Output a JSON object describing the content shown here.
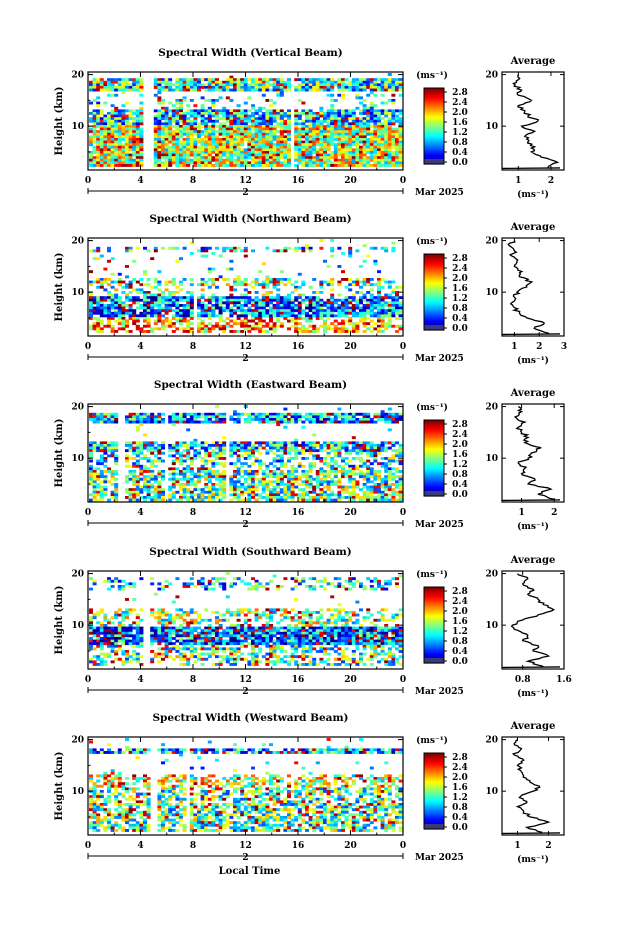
{
  "chart_data": [
    {
      "type": "heatmap",
      "title": "Spectral Width (Vertical Beam)",
      "ylabel": "Height (km)",
      "x_ticks": [
        "0",
        "4",
        "8",
        "12",
        "16",
        "20",
        "0"
      ],
      "y_ticks": [
        "20",
        "10"
      ],
      "date_label": "Mar 2025",
      "day_label": "2",
      "colorbar": {
        "unit": "(ms⁻¹)",
        "ticks": [
          "2.8",
          "2.4",
          "2.0",
          "1.6",
          "1.2",
          "0.8",
          "0.4",
          "0.0"
        ],
        "range": [
          0,
          3.0
        ]
      },
      "profile": {
        "title": "Average",
        "xlabel": "(ms⁻¹)",
        "x_ticks": [
          "1",
          "2"
        ],
        "xlim": [
          0.5,
          2.4
        ],
        "y_ticks": [
          "20",
          "10"
        ],
        "heights": [
          2,
          3,
          4,
          5,
          6,
          7,
          8,
          9,
          10,
          11,
          12,
          13,
          14,
          15,
          16,
          17,
          18,
          19,
          20
        ],
        "values": [
          1.9,
          2.2,
          1.7,
          1.4,
          1.5,
          1.3,
          1.2,
          1.5,
          1.1,
          1.6,
          1.3,
          1.2,
          1.0,
          1.4,
          1.0,
          1.1,
          0.9,
          1.0,
          1.0
        ]
      }
    },
    {
      "type": "heatmap",
      "title": "Spectral Width (Northward Beam)",
      "ylabel": "Height (km)",
      "x_ticks": [
        "0",
        "4",
        "8",
        "12",
        "16",
        "20",
        "0"
      ],
      "y_ticks": [
        "20",
        "10"
      ],
      "date_label": "Mar 2025",
      "day_label": "2",
      "colorbar": {
        "unit": "(ms⁻¹)",
        "ticks": [
          "2.8",
          "2.4",
          "2.0",
          "1.6",
          "1.2",
          "0.8",
          "0.4",
          "0.0"
        ],
        "range": [
          0,
          3.0
        ]
      },
      "profile": {
        "title": "Average",
        "xlabel": "(ms⁻¹)",
        "x_ticks": [
          "1",
          "2",
          "3"
        ],
        "xlim": [
          0.5,
          3.0
        ],
        "y_ticks": [
          "20",
          "10"
        ],
        "heights": [
          2,
          3,
          4,
          5,
          6,
          7,
          8,
          9,
          10,
          11,
          12,
          13,
          14,
          15,
          16,
          17,
          18,
          19,
          20
        ],
        "values": [
          2.4,
          1.8,
          2.2,
          1.5,
          1.2,
          1.0,
          0.9,
          1.0,
          1.1,
          1.5,
          1.7,
          1.2,
          1.3,
          1.0,
          1.1,
          0.9,
          1.0,
          0.8,
          1.0
        ]
      }
    },
    {
      "type": "heatmap",
      "title": "Spectral Width (Eastward Beam)",
      "ylabel": "Height (km)",
      "x_ticks": [
        "0",
        "4",
        "8",
        "12",
        "16",
        "20",
        "0"
      ],
      "y_ticks": [
        "20",
        "10"
      ],
      "date_label": "Mar 2025",
      "day_label": "2",
      "colorbar": {
        "unit": "(ms⁻¹)",
        "ticks": [
          "2.8",
          "2.4",
          "2.0",
          "1.6",
          "1.2",
          "0.8",
          "0.4",
          "0.0"
        ],
        "range": [
          0,
          3.0
        ]
      },
      "profile": {
        "title": "Average",
        "xlabel": "(ms⁻¹)",
        "x_ticks": [
          "1",
          "2"
        ],
        "xlim": [
          0.4,
          2.3
        ],
        "y_ticks": [
          "20",
          "10"
        ],
        "heights": [
          2,
          3,
          4,
          5,
          6,
          7,
          8,
          9,
          10,
          11,
          12,
          13,
          14,
          15,
          16,
          17,
          18,
          19,
          20
        ],
        "values": [
          2.0,
          1.5,
          1.9,
          1.2,
          1.4,
          1.0,
          1.1,
          0.9,
          1.2,
          1.3,
          1.6,
          1.1,
          1.2,
          1.0,
          0.9,
          1.1,
          0.8,
          1.0,
          0.9
        ]
      }
    },
    {
      "type": "heatmap",
      "title": "Spectral Width (Southward Beam)",
      "ylabel": "Height (km)",
      "x_ticks": [
        "0",
        "4",
        "8",
        "12",
        "16",
        "20",
        "0"
      ],
      "y_ticks": [
        "20",
        "10"
      ],
      "date_label": "Mar 2025",
      "day_label": "2",
      "colorbar": {
        "unit": "(ms⁻¹)",
        "ticks": [
          "2.8",
          "2.4",
          "2.0",
          "1.6",
          "1.2",
          "0.8",
          "0.4",
          "0.0"
        ],
        "range": [
          0,
          3.0
        ]
      },
      "profile": {
        "title": "Average",
        "xlabel": "(ms⁻¹)",
        "x_ticks": [
          "0.8",
          "1.6"
        ],
        "xlim": [
          0.4,
          1.6
        ],
        "y_ticks": [
          "20",
          "10"
        ],
        "heights": [
          2,
          3,
          4,
          5,
          6,
          7,
          8,
          9,
          10,
          11,
          12,
          13,
          14,
          15,
          16,
          17,
          18,
          19,
          20
        ],
        "values": [
          1.2,
          0.9,
          1.3,
          1.0,
          1.1,
          0.8,
          0.9,
          0.7,
          0.6,
          0.8,
          1.1,
          1.4,
          1.2,
          1.1,
          0.9,
          1.0,
          0.8,
          0.9,
          0.7
        ]
      }
    },
    {
      "type": "heatmap",
      "title": "Spectral Width (Westward Beam)",
      "ylabel": "Height (km)",
      "xlabel": "Local Time",
      "x_ticks": [
        "0",
        "4",
        "8",
        "12",
        "16",
        "20",
        "0"
      ],
      "y_ticks": [
        "20",
        "10"
      ],
      "date_label": "Mar 2025",
      "day_label": "2",
      "colorbar": {
        "unit": "(ms⁻¹)",
        "ticks": [
          "2.8",
          "2.4",
          "2.0",
          "1.6",
          "1.2",
          "0.8",
          "0.4",
          "0.0"
        ],
        "range": [
          0,
          3.0
        ]
      },
      "profile": {
        "title": "Average",
        "xlabel": "(ms⁻¹)",
        "x_ticks": [
          "1",
          "2"
        ],
        "xlim": [
          0.5,
          2.5
        ],
        "y_ticks": [
          "20",
          "10"
        ],
        "heights": [
          2,
          3,
          4,
          5,
          6,
          7,
          8,
          9,
          10,
          11,
          12,
          13,
          14,
          15,
          16,
          17,
          18,
          19,
          20
        ],
        "values": [
          1.8,
          1.3,
          2.0,
          1.4,
          1.2,
          1.0,
          1.3,
          1.1,
          1.5,
          1.7,
          1.4,
          1.2,
          1.1,
          1.0,
          1.2,
          0.9,
          1.1,
          0.9,
          1.0
        ]
      }
    }
  ]
}
